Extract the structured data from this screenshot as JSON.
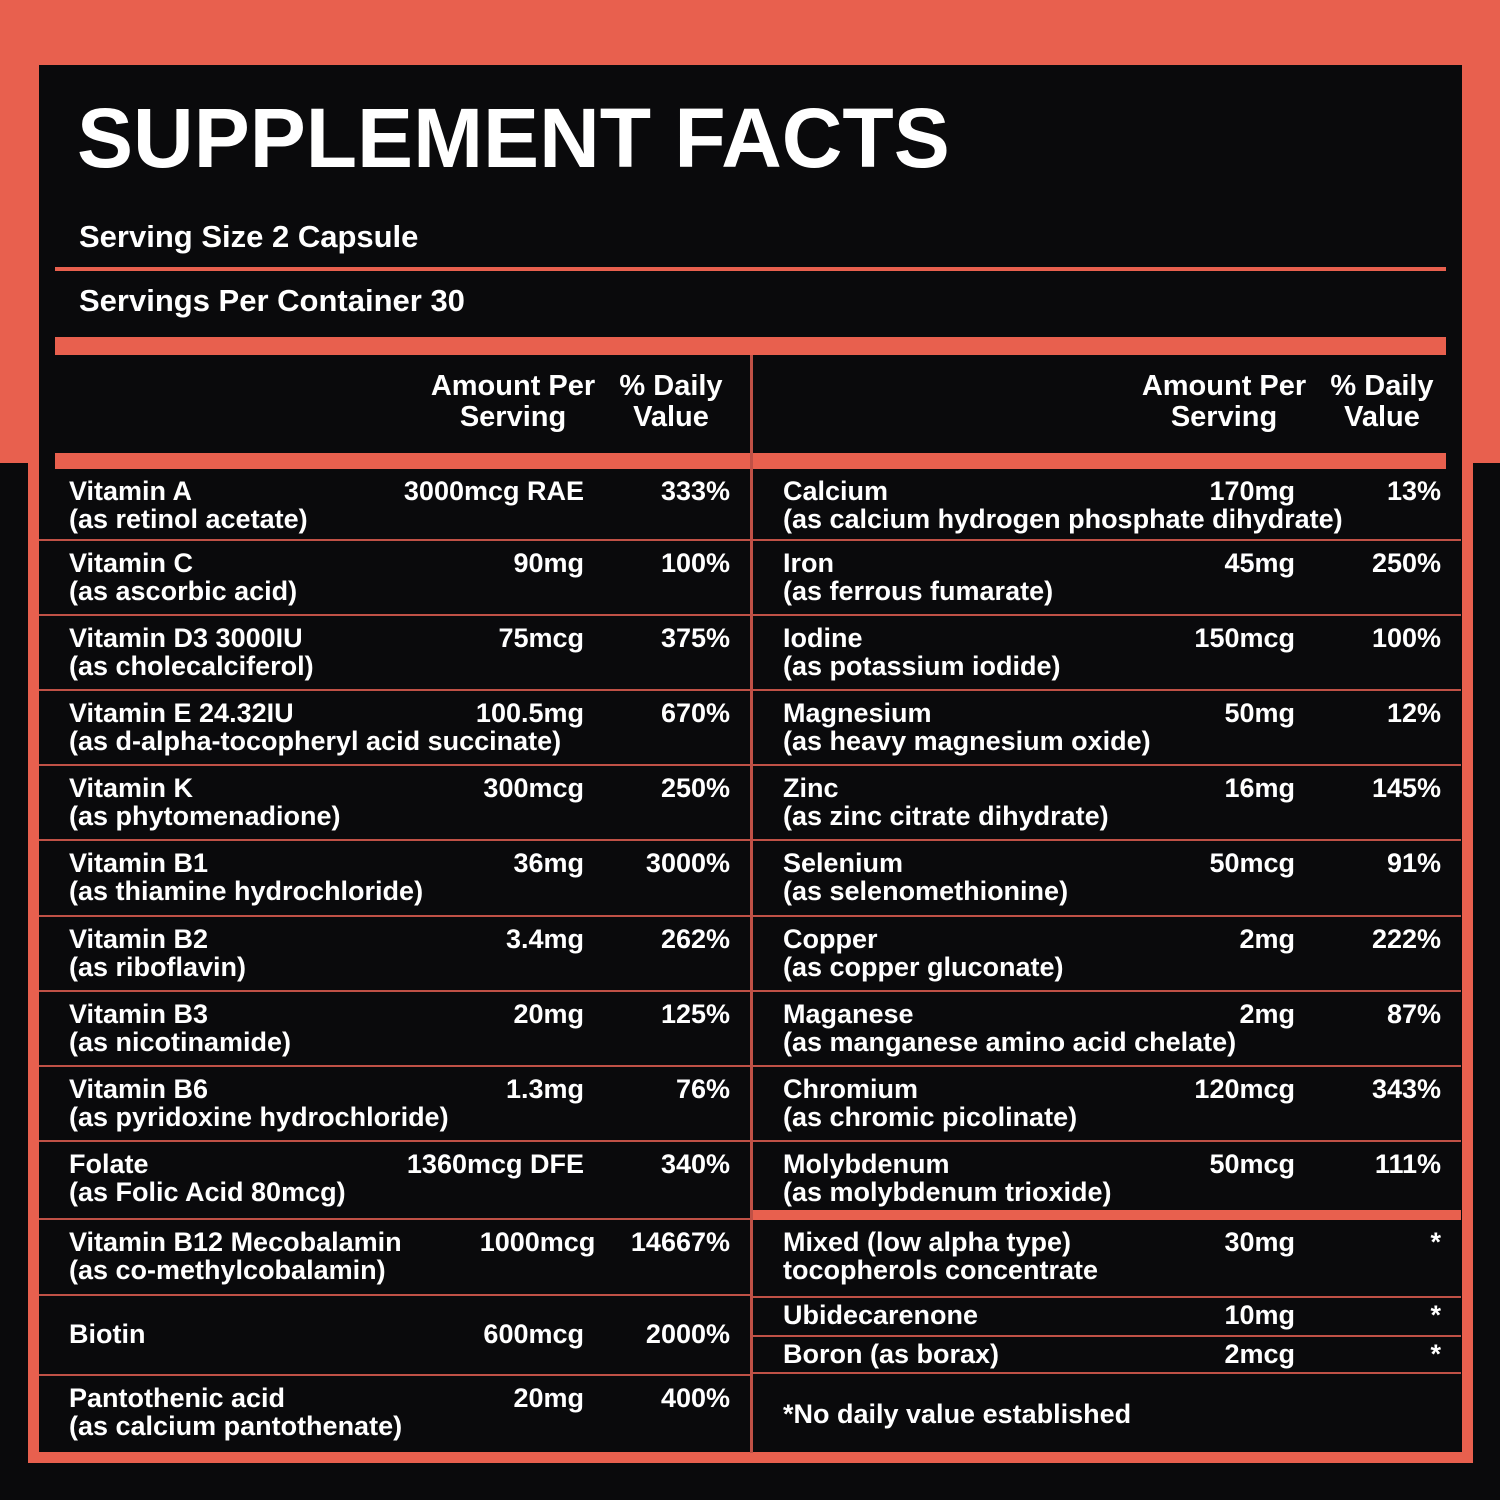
{
  "panel": {
    "title": "SUPPLEMENT FACTS",
    "serving_size": "Serving Size 2 Capsule",
    "servings_per_container": "Servings Per Container 30",
    "footnote": "*No daily value established",
    "colors": {
      "coral": "#E8604E",
      "divider_line": "#C05146",
      "background": "#0A0A0C",
      "text": "#FFFFFF"
    }
  },
  "table": {
    "headers": {
      "amount": "Amount Per\nServing",
      "daily": "% Daily\nValue"
    },
    "left_rows": [
      {
        "name": "Vitamin A",
        "sub": "(as retinol acetate)",
        "amount": "3000mcg RAE",
        "dv": "333%"
      },
      {
        "name": "Vitamin C",
        "sub": "(as ascorbic acid)",
        "amount": "90mg",
        "dv": "100%"
      },
      {
        "name": "Vitamin D3 3000IU",
        "sub": "(as cholecalciferol)",
        "amount": "75mcg",
        "dv": "375%"
      },
      {
        "name": "Vitamin E 24.32IU",
        "sub": "(as d-alpha-tocopheryl acid succinate)",
        "amount": "100.5mg",
        "dv": "670%"
      },
      {
        "name": "Vitamin K",
        "sub": "(as phytomenadione)",
        "amount": "300mcg",
        "dv": "250%"
      },
      {
        "name": "Vitamin B1",
        "sub": "(as thiamine hydrochloride)",
        "amount": "36mg",
        "dv": "3000%"
      },
      {
        "name": "Vitamin B2",
        "sub": "(as riboflavin)",
        "amount": "3.4mg",
        "dv": "262%"
      },
      {
        "name": "Vitamin B3",
        "sub": "(as nicotinamide)",
        "amount": "20mg",
        "dv": "125%"
      },
      {
        "name": "Vitamin B6",
        "sub": "(as pyridoxine hydrochloride)",
        "amount": "1.3mg",
        "dv": "76%"
      },
      {
        "name": "Folate",
        "sub": "(as Folic Acid 80mcg)",
        "amount": "1360mcg DFE",
        "dv": "340%"
      },
      {
        "name": "Vitamin B12 Mecobalamin",
        "sub": "(as co-methylcobalamin)",
        "amount": "1000mcg",
        "dv": "14667%"
      },
      {
        "name": "Biotin",
        "sub": "",
        "amount": "600mcg",
        "dv": "2000%"
      },
      {
        "name": "Pantothenic acid",
        "sub": "(as calcium pantothenate)",
        "amount": "20mg",
        "dv": "400%"
      }
    ],
    "right_rows": [
      {
        "name": "Calcium",
        "sub": "(as calcium hydrogen phosphate dihydrate)",
        "amount": "170mg",
        "dv": "13%"
      },
      {
        "name": "Iron",
        "sub": "(as ferrous fumarate)",
        "amount": "45mg",
        "dv": "250%"
      },
      {
        "name": "Iodine",
        "sub": "(as potassium iodide)",
        "amount": "150mcg",
        "dv": "100%"
      },
      {
        "name": "Magnesium",
        "sub": "(as heavy magnesium oxide)",
        "amount": "50mg",
        "dv": "12%"
      },
      {
        "name": "Zinc",
        "sub": "(as zinc citrate dihydrate)",
        "amount": "16mg",
        "dv": "145%"
      },
      {
        "name": "Selenium",
        "sub": "(as selenomethionine)",
        "amount": "50mcg",
        "dv": "91%"
      },
      {
        "name": "Copper",
        "sub": "(as copper gluconate)",
        "amount": "2mg",
        "dv": "222%"
      },
      {
        "name": "Maganese",
        "sub": "(as manganese amino acid chelate)",
        "amount": "2mg",
        "dv": "87%"
      },
      {
        "name": "Chromium",
        "sub": "(as chromic picolinate)",
        "amount": "120mcg",
        "dv": "343%"
      },
      {
        "name": "Molybdenum",
        "sub": "(as molybdenum trioxide)",
        "amount": "50mcg",
        "dv": "111%"
      },
      {
        "name": "Mixed (low alpha type)",
        "sub": "tocopherols concentrate",
        "amount": "30mg",
        "dv": "*"
      },
      {
        "name": "Ubidecarenone",
        "sub": "",
        "amount": "10mg",
        "dv": "*"
      },
      {
        "name": "Boron (as borax)",
        "sub": "",
        "amount": "2mcg",
        "dv": "*"
      }
    ]
  }
}
